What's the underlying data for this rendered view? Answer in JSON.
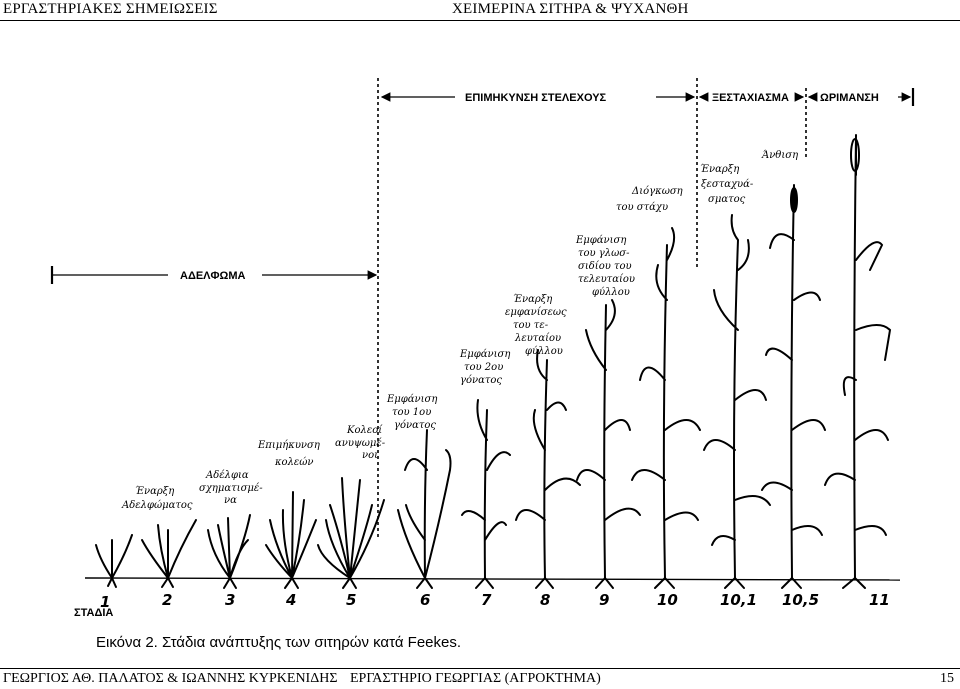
{
  "header": {
    "left": "ΕΡΓΑΣΤΗΡΙΑΚΕΣ ΣΗΜΕΙΩΣΕΙΣ",
    "right": "ΧΕΙΜΕΡΙΝΑ ΣΙΤΗΡΑ & ΨΥΧΑΝΘΗ"
  },
  "figure": {
    "phases": {
      "tillering": "ΑΔΕΛΦΩΜΑ",
      "stem_elongation": "ΕΠΙΜΗΚΥΝΣΗ ΣΤΕΛΕΧΟΥΣ",
      "heading": "ΞΕΣΤΑΧΙΑΣΜΑ",
      "ripening": "ΩΡΙΜΑΝΣΗ"
    },
    "stages_label": "ΣΤΑΔΙΑ",
    "stages": [
      "1",
      "2",
      "3",
      "4",
      "5",
      "6",
      "7",
      "8",
      "9",
      "10",
      "10,1",
      "10,5",
      "11"
    ],
    "annotations": {
      "a1": [
        "Έναρξη",
        "Αδελφώματος"
      ],
      "a2": [
        "Αδέλφια",
        "σχηματισμέ-",
        "να"
      ],
      "a3": [
        "Επιμήκυνση",
        "κολεών"
      ],
      "a4": [
        "Κολεοί",
        "ανυψωμέ-",
        "νοι"
      ],
      "a5": [
        "Εμφάνιση",
        "του 1ου",
        "γόνατος"
      ],
      "a6": [
        "Εμφάνιση",
        "του 2ου",
        "γόνατος"
      ],
      "a7": [
        "Έναρξη",
        "εμφανίσεως",
        "του τε-",
        "λευταίου",
        "φύλλου"
      ],
      "a8": [
        "Εμφάνιση",
        "του γλωσ-",
        "σιδίου του",
        "τελευταίου",
        "φύλλου"
      ],
      "a9": [
        "Διόγκωση",
        "του στάχυ"
      ],
      "a10": [
        "Έναρξη",
        "ξεσταχυά-",
        "σματος"
      ],
      "a11": [
        "Άνθιση"
      ]
    }
  },
  "caption": "Εικόνα 2. Στάδια ανάπτυξης των σιτηρών κατά Feekes.",
  "footer": {
    "left": "ΓΕΩΡΓΙΟΣ ΑΘ. ΠΑΛΑΤΟΣ & ΙΩΑΝΝΗΣ ΚΥΡΚΕΝΙΔΗΣ",
    "middle": "ΕΡΓΑΣΤΗΡΙΟ ΓΕΩΡΓΙΑΣ (ΑΓΡΟΚΤΗΜΑ)",
    "page": "15"
  }
}
